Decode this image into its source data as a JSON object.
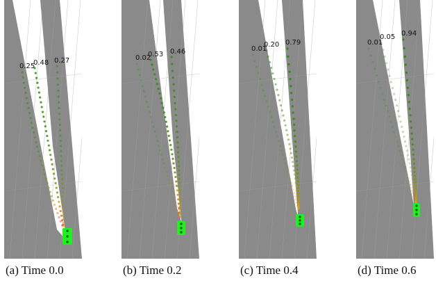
{
  "figure": {
    "panels": [
      {
        "id": "a",
        "caption": "(a) Time 0.0",
        "trajectories": [
          {
            "probability_label": "0.25",
            "probability": 0.25
          },
          {
            "probability_label": "0.48",
            "probability": 0.48
          },
          {
            "probability_label": "0.27",
            "probability": 0.27
          }
        ]
      },
      {
        "id": "b",
        "caption": "(b) Time 0.2",
        "trajectories": [
          {
            "probability_label": "0.02",
            "probability": 0.02
          },
          {
            "probability_label": "0.53",
            "probability": 0.53
          },
          {
            "probability_label": "0.46",
            "probability": 0.46
          }
        ]
      },
      {
        "id": "c",
        "caption": "(c) Time 0.4",
        "trajectories": [
          {
            "probability_label": "0.01",
            "probability": 0.01
          },
          {
            "probability_label": "0.20",
            "probability": 0.2
          },
          {
            "probability_label": "0.79",
            "probability": 0.79
          }
        ]
      },
      {
        "id": "d",
        "caption": "(d) Time 0.6",
        "trajectories": [
          {
            "probability_label": "0.01",
            "probability": 0.01
          },
          {
            "probability_label": "0.05",
            "probability": 0.05
          },
          {
            "probability_label": "0.94",
            "probability": 0.94
          }
        ]
      }
    ],
    "colors": {
      "road": "#8a8a8a",
      "road_line": "#a2a2a2",
      "trajectory_near": "#e0a020",
      "trajectory_far": "#2e8b10",
      "trajectory_conflict": "#d84030",
      "vehicle": "#22ee22"
    }
  }
}
